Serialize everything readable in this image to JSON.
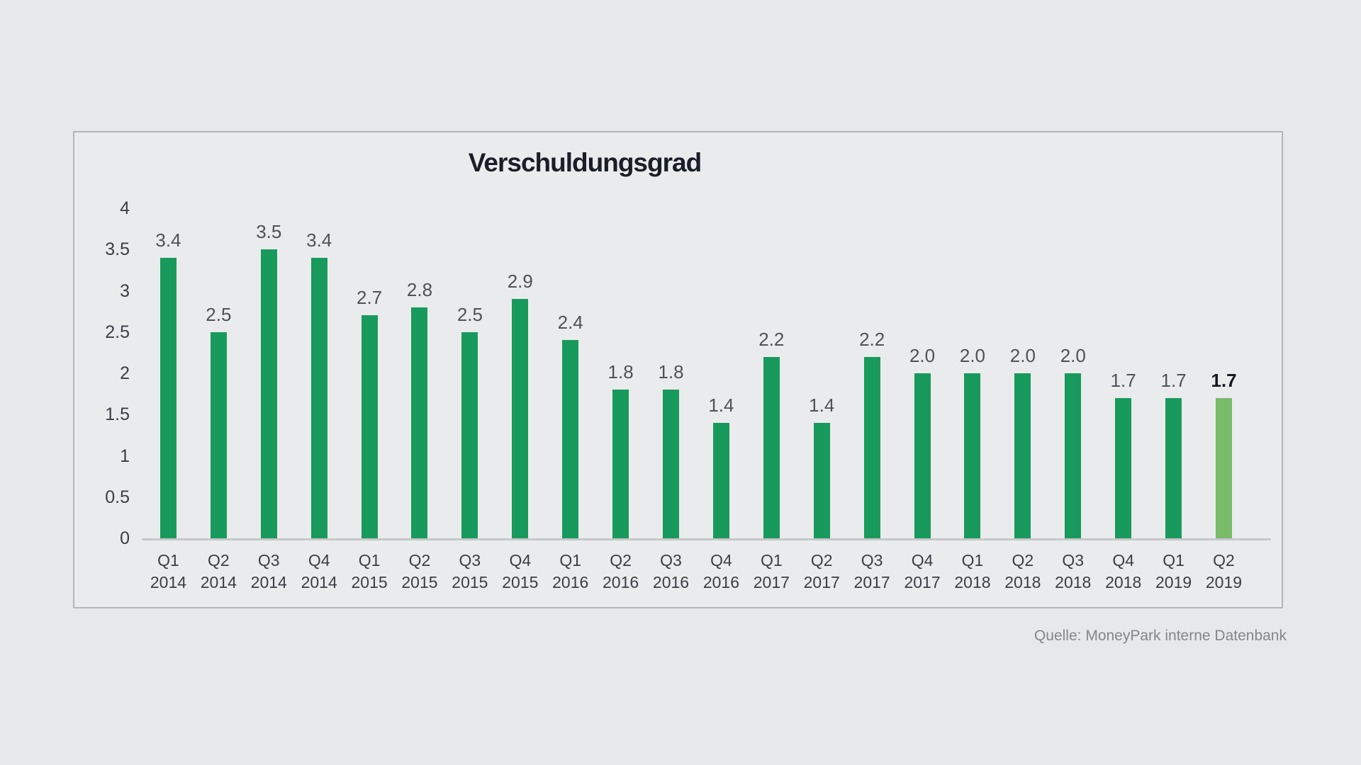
{
  "colors": {
    "page_background": "#e7e8ea",
    "panel_background": "#eaebed",
    "panel_border": "#b3b5b9",
    "bar_default": "#189a5c",
    "bar_highlight": "#79bb68",
    "axis_line": "#c6c7c9"
  },
  "source_note": "Quelle: MoneyPark interne Datenbank",
  "chart_data": {
    "type": "bar",
    "title": "Verschuldungsgrad",
    "categories": [
      "Q1 2014",
      "Q2 2014",
      "Q3 2014",
      "Q4 2014",
      "Q1 2015",
      "Q2 2015",
      "Q3 2015",
      "Q4 2015",
      "Q1 2016",
      "Q2 2016",
      "Q3 2016",
      "Q4 2016",
      "Q1 2017",
      "Q2 2017",
      "Q3 2017",
      "Q4 2017",
      "Q1 2018",
      "Q2 2018",
      "Q3 2018",
      "Q4 2018",
      "Q1 2019",
      "Q2 2019"
    ],
    "values": [
      3.4,
      2.5,
      3.5,
      3.4,
      2.7,
      2.8,
      2.5,
      2.9,
      2.4,
      1.8,
      1.8,
      1.4,
      2.2,
      1.4,
      2.2,
      2.0,
      2.0,
      2.0,
      2.0,
      1.7,
      1.7,
      1.7
    ],
    "value_labels": [
      "3.4",
      "2.5",
      "3.5",
      "3.4",
      "2.7",
      "2.8",
      "2.5",
      "2.9",
      "2.4",
      "1.8",
      "1.8",
      "1.4",
      "2.2",
      "1.4",
      "2.2",
      "2.0",
      "2.0",
      "2.0",
      "2.0",
      "1.7",
      "1.7",
      "1.7"
    ],
    "highlight_index": 21,
    "yticks": [
      4,
      3.5,
      3,
      2.5,
      2,
      1.5,
      1,
      0.5,
      0
    ],
    "ytick_labels": [
      "4",
      "3.5",
      "3",
      "2.5",
      "2",
      "1.5",
      "1",
      "0.5",
      "0"
    ],
    "ylim": [
      0,
      4
    ],
    "xlabel": "",
    "ylabel": "",
    "grid": "off",
    "legend": "none"
  }
}
